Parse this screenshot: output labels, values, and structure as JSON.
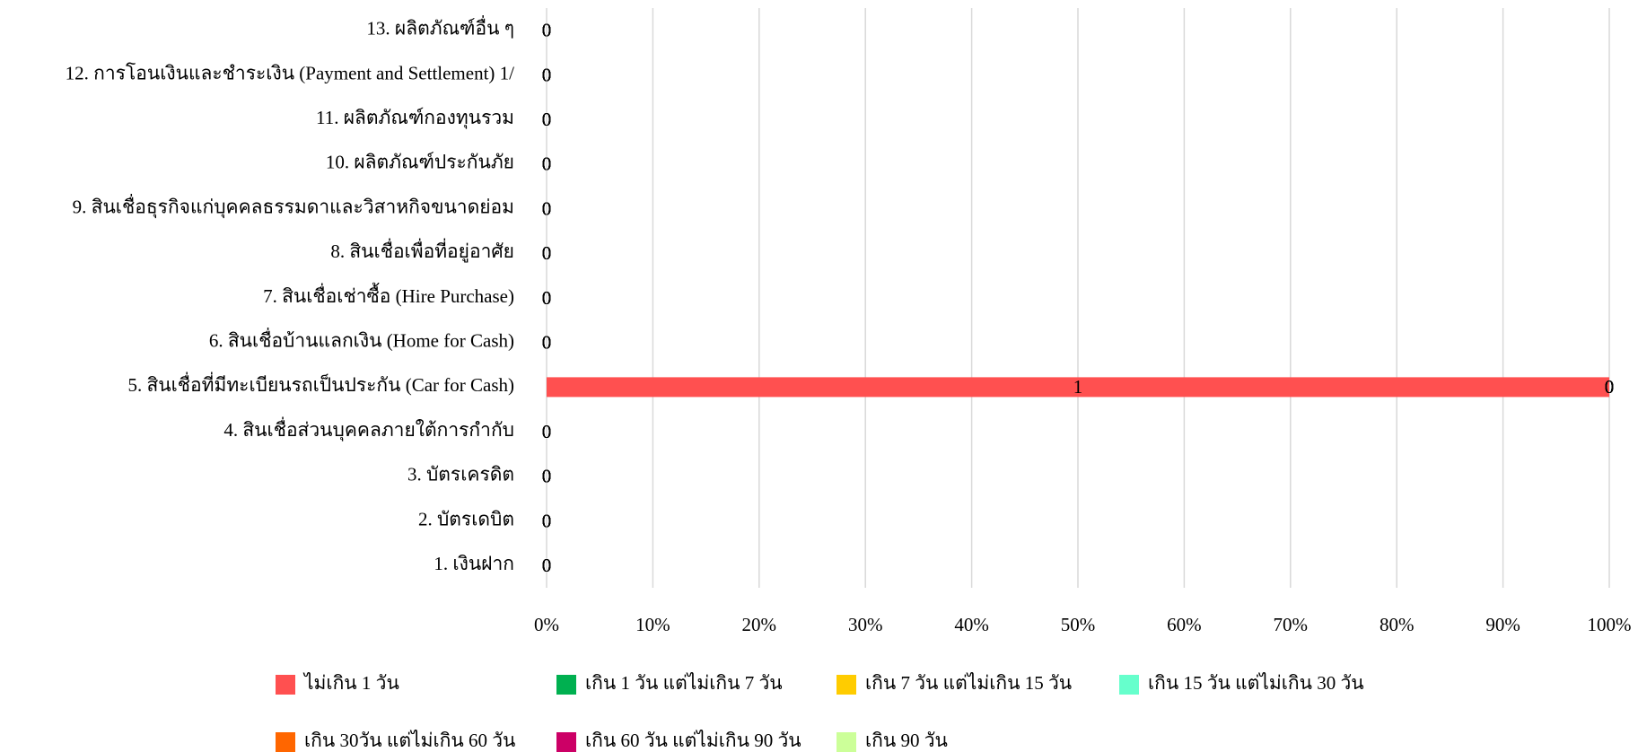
{
  "chart_data": {
    "type": "stacked_bar_100_horizontal",
    "categories": [
      "1. เงินฝาก",
      "2. บัตรเดบิต",
      "3. บัตรเครดิต",
      "4. สินเชื่อส่วนบุคคลภายใต้การกำกับ",
      "5. สินเชื่อที่มีทะเบียนรถเป็นประกัน (Car for Cash)",
      "6. สินเชื่อบ้านแลกเงิน (Home for Cash)",
      "7. สินเชื่อเช่าซื้อ (Hire Purchase)",
      "8. สินเชื่อเพื่อที่อยู่อาศัย",
      "9. สินเชื่อธุรกิจแก่บุคคลธรรมดาและวิสาหกิจขนาดย่อม",
      "10. ผลิตภัณฑ์ประกันภัย",
      "11. ผลิตภัณฑ์กองทุนรวม",
      "12. การโอนเงินและชำระเงิน (Payment and Settlement) 1/",
      "13. ผลิตภัณฑ์อื่น ๆ"
    ],
    "series": [
      {
        "name": "ไม่เกิน 1 วัน",
        "color": "#FF5050",
        "values": [
          0,
          0,
          0,
          0,
          1,
          0,
          0,
          0,
          0,
          0,
          0,
          0,
          0
        ]
      },
      {
        "name": "เกิน 1 วัน แต่ไม่เกิน 7 วัน",
        "color": "#00B050",
        "values": [
          0,
          0,
          0,
          0,
          0,
          0,
          0,
          0,
          0,
          0,
          0,
          0,
          0
        ]
      },
      {
        "name": "เกิน 7 วัน แต่ไม่เกิน 15 วัน",
        "color": "#FFCC00",
        "values": [
          0,
          0,
          0,
          0,
          0,
          0,
          0,
          0,
          0,
          0,
          0,
          0,
          0
        ]
      },
      {
        "name": "เกิน 15 วัน แต่ไม่เกิน 30 วัน",
        "color": "#66FFCC",
        "values": [
          0,
          0,
          0,
          0,
          0,
          0,
          0,
          0,
          0,
          0,
          0,
          0,
          0
        ]
      },
      {
        "name": "เกิน 30วัน แต่ไม่เกิน 60 วัน",
        "color": "#FF6600",
        "values": [
          0,
          0,
          0,
          0,
          0,
          0,
          0,
          0,
          0,
          0,
          0,
          0,
          0
        ]
      },
      {
        "name": "เกิน 60 วัน แต่ไม่เกิน 90 วัน",
        "color": "#CC0066",
        "values": [
          0,
          0,
          0,
          0,
          0,
          0,
          0,
          0,
          0,
          0,
          0,
          0,
          0
        ]
      },
      {
        "name": "เกิน 90 วัน",
        "color": "#CCFF99",
        "values": [
          0,
          0,
          0,
          0,
          0,
          0,
          0,
          0,
          0,
          0,
          0,
          0,
          0
        ]
      }
    ],
    "xlim": [
      0,
      100
    ],
    "xticks": [
      {
        "value": 0,
        "label": "0%"
      },
      {
        "value": 10,
        "label": "10%"
      },
      {
        "value": 20,
        "label": "20%"
      },
      {
        "value": 30,
        "label": "30%"
      },
      {
        "value": 40,
        "label": "40%"
      },
      {
        "value": 50,
        "label": "50%"
      },
      {
        "value": 60,
        "label": "60%"
      },
      {
        "value": 70,
        "label": "70%"
      },
      {
        "value": 80,
        "label": "80%"
      },
      {
        "value": 90,
        "label": "90%"
      },
      {
        "value": 100,
        "label": "100%"
      }
    ],
    "grid": true,
    "legend": "bottom"
  }
}
